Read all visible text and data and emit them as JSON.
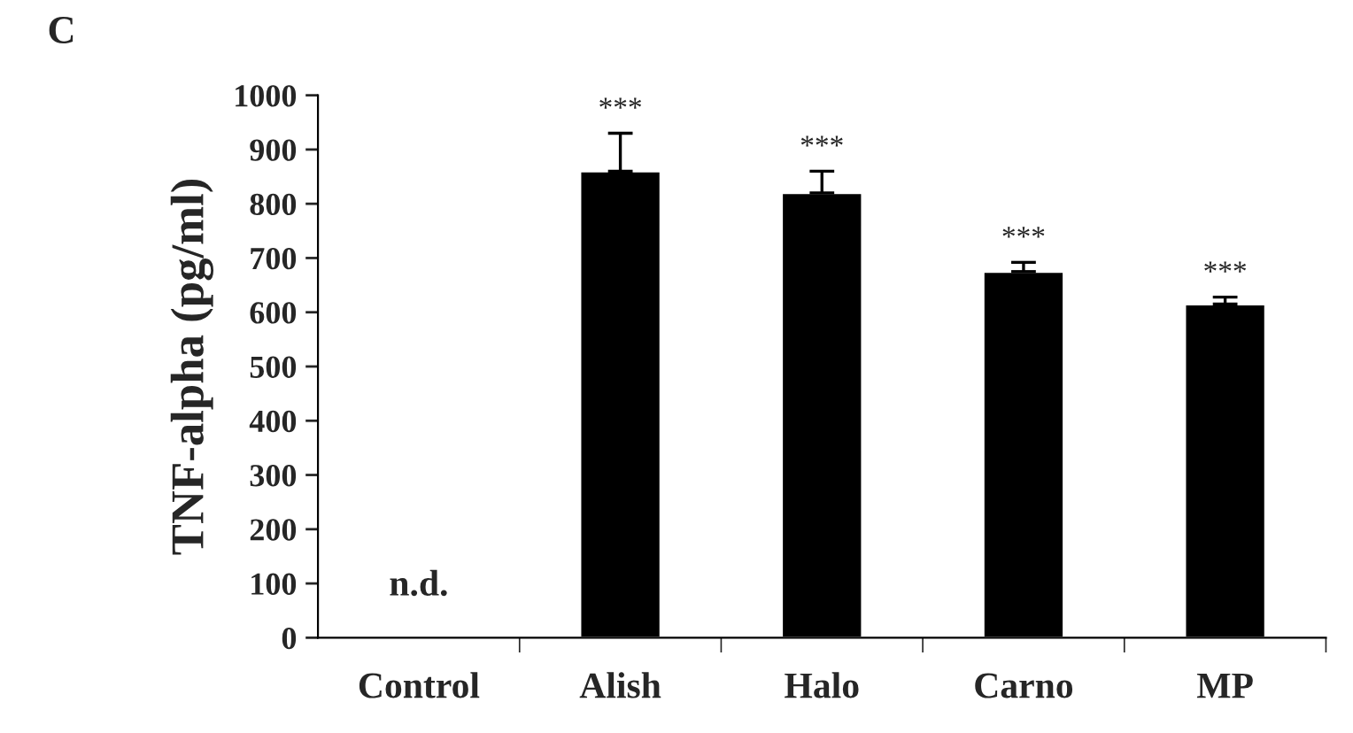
{
  "chart_data": {
    "type": "bar",
    "title": "C",
    "ylabel": "TNF-alpha (pg/ml)",
    "categories": [
      "Control",
      "Alish",
      "Halo",
      "Carno",
      "MP"
    ],
    "values": [
      null,
      860,
      820,
      675,
      615
    ],
    "color": "#000000",
    "errors": [
      null,
      [
        860,
        930
      ],
      [
        820,
        860
      ],
      [
        675,
        692
      ],
      [
        615,
        628
      ]
    ],
    "ylim": [
      0,
      1000
    ],
    "yticks": [
      0,
      100,
      200,
      300,
      400,
      500,
      600,
      700,
      800,
      900,
      1000
    ],
    "grid": false,
    "annotations": [
      "n.d.",
      {
        "text": "***",
        "x": "Alish",
        "y": 930
      },
      {
        "text": "***",
        "x": "Halo",
        "y": 860
      },
      {
        "text": "***",
        "x": "Carno",
        "y": 692
      },
      {
        "text": "***",
        "x": "MP",
        "y": 628
      }
    ]
  }
}
